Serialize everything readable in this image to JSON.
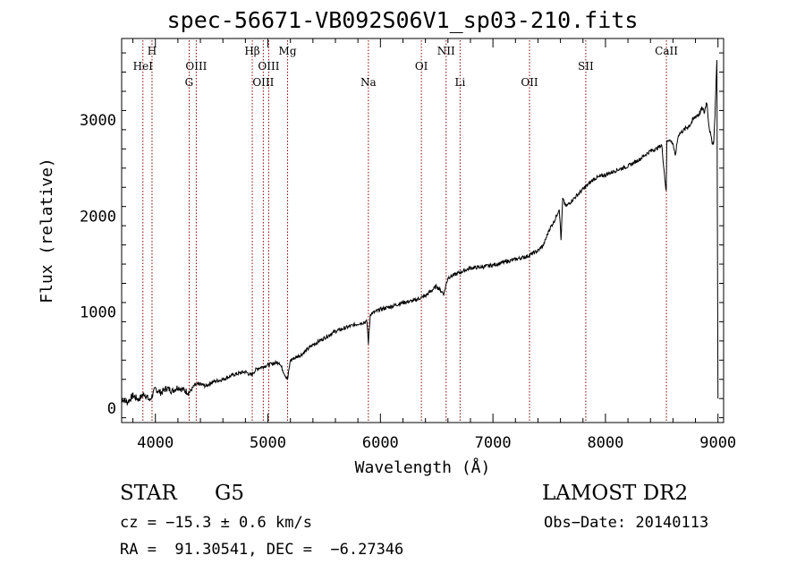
{
  "chart_data": {
    "type": "line",
    "title": "spec-56671-VB092S06V1_sp03-210.fits",
    "xlabel": "Wavelength (Å)",
    "ylabel": "Flux (relative)",
    "xlim": [
      3700,
      9050
    ],
    "ylim": [
      -150,
      3850
    ],
    "xticks": [
      4000,
      5000,
      6000,
      7000,
      8000,
      9000
    ],
    "yticks": [
      0,
      1000,
      2000,
      3000
    ],
    "grid": false,
    "line_color": "#000000",
    "marker_color": "#8b0000",
    "series": [
      {
        "x": [
          3700,
          3750,
          3800,
          3850,
          3900,
          3950,
          4000,
          4050,
          4100,
          4150,
          4200,
          4250,
          4300,
          4350,
          4400,
          4450,
          4500,
          4600,
          4700,
          4800,
          4850,
          4900,
          5000,
          5100,
          5150,
          5175,
          5200,
          5300,
          5400,
          5500,
          5600,
          5700,
          5800,
          5880,
          5893,
          5910,
          5950,
          6000,
          6100,
          6200,
          6300,
          6400,
          6500,
          6563,
          6600,
          6700,
          6800,
          6900,
          7000,
          7100,
          7200,
          7300,
          7400,
          7450,
          7500,
          7550,
          7590,
          7605,
          7620,
          7650,
          7700,
          7800,
          7900,
          8000,
          8100,
          8200,
          8300,
          8400,
          8450,
          8500,
          8540,
          8545,
          8560,
          8600,
          8620,
          8640,
          8650,
          8700,
          8750,
          8800,
          8830,
          8860,
          8880,
          8900,
          8920,
          8940,
          8960,
          8970,
          8980,
          8990,
          9000
        ],
        "y": [
          100,
          60,
          130,
          90,
          150,
          80,
          200,
          160,
          210,
          180,
          220,
          190,
          160,
          240,
          250,
          230,
          270,
          300,
          350,
          380,
          340,
          410,
          450,
          480,
          350,
          300,
          500,
          560,
          660,
          730,
          800,
          840,
          880,
          900,
          680,
          980,
          1000,
          1030,
          1060,
          1100,
          1120,
          1170,
          1270,
          1190,
          1360,
          1410,
          1460,
          1470,
          1490,
          1520,
          1550,
          1580,
          1640,
          1700,
          1860,
          1960,
          2080,
          1750,
          2180,
          2100,
          2160,
          2280,
          2390,
          2430,
          2480,
          2520,
          2590,
          2680,
          2700,
          2740,
          2250,
          2780,
          2800,
          2760,
          2620,
          2790,
          2850,
          2900,
          2950,
          3040,
          3060,
          3120,
          3080,
          3200,
          2950,
          2800,
          2750,
          2950,
          3300,
          3600,
          100
        ]
      }
    ],
    "lines": [
      {
        "label": "H",
        "x": 3970,
        "row": 0
      },
      {
        "label": "HeI",
        "x": 3889,
        "row": 1
      },
      {
        "label": "OIII",
        "x": 4363,
        "row": 1
      },
      {
        "label": "G",
        "x": 4300,
        "row": 2
      },
      {
        "label": "Hβ",
        "x": 4861,
        "row": 0
      },
      {
        "label": "OIII",
        "x": 5007,
        "row": 1
      },
      {
        "label": "OIII",
        "x": 4959,
        "row": 2
      },
      {
        "label": "Mg",
        "x": 5175,
        "row": 0
      },
      {
        "label": "Na",
        "x": 5893,
        "row": 2
      },
      {
        "label": "OI",
        "x": 6364,
        "row": 1
      },
      {
        "label": "NII",
        "x": 6584,
        "row": 0
      },
      {
        "label": "Li",
        "x": 6708,
        "row": 2
      },
      {
        "label": "OII",
        "x": 7325,
        "row": 2
      },
      {
        "label": "SII",
        "x": 7825,
        "row": 1
      },
      {
        "label": "CaII",
        "x": 8542,
        "row": 0
      }
    ]
  },
  "info": {
    "class": "STAR",
    "subclass": "G5",
    "survey": "LAMOST DR2",
    "cz": "cz = −15.3 ± 0.6 km/s",
    "obs_date": "Obs−Date: 20140113",
    "coords": "RA =  91.30541, DEC =  −6.27346"
  }
}
